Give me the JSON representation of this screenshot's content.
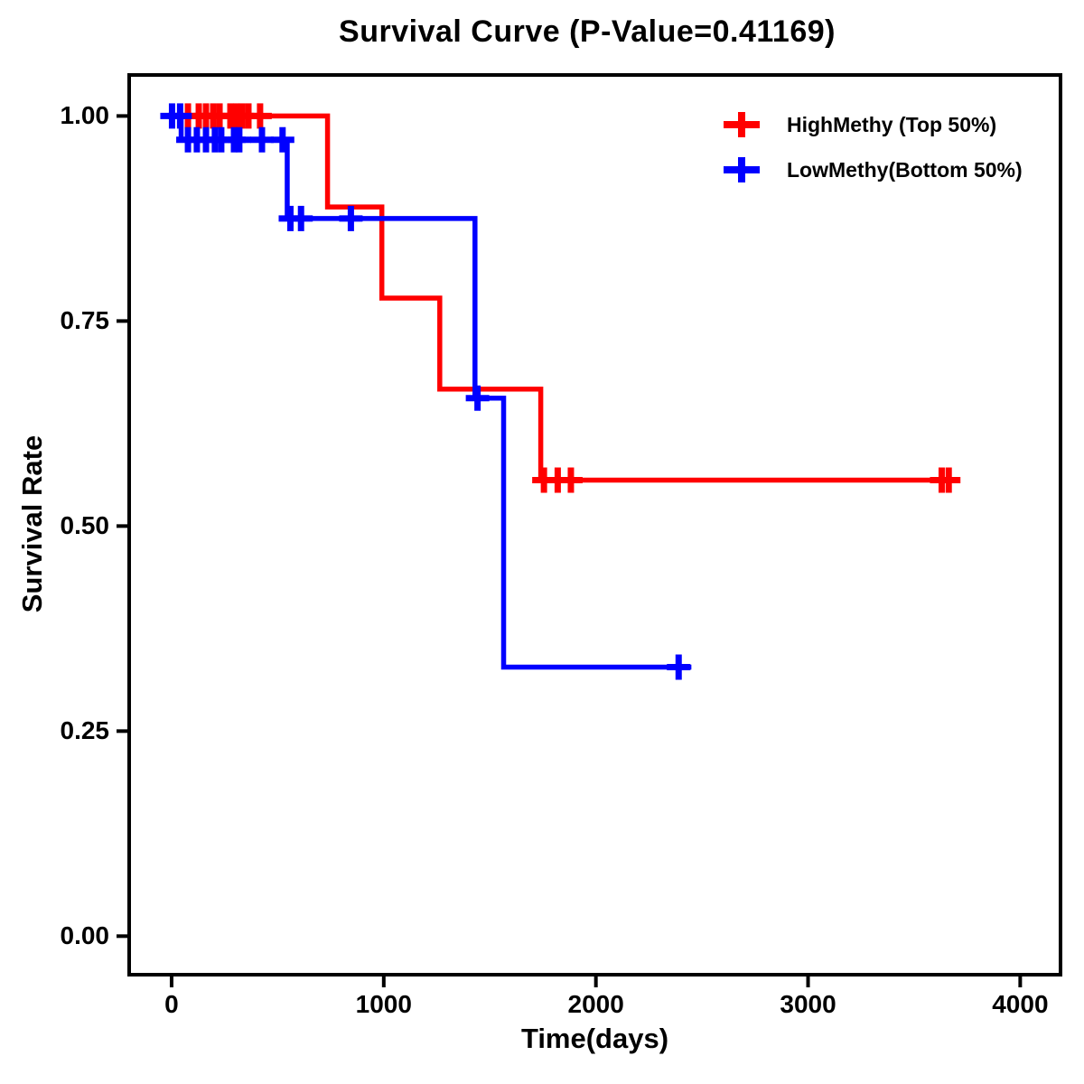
{
  "page": {
    "background": "#FFFFFF",
    "text_color": "#000000"
  },
  "chart_data": {
    "type": "line",
    "subtype": "kaplan-meier-step-curve",
    "title": "Survival Curve (P-Value=0.41169)",
    "p_value": "0.41169",
    "xlabel": "Time(days)",
    "ylabel": "Survival Rate",
    "x_ticks": [
      0,
      1000,
      2000,
      3000,
      4000
    ],
    "y_ticks": [
      0.0,
      0.25,
      0.5,
      0.75,
      1.0
    ],
    "xlim": [
      -200,
      4190
    ],
    "ylim": [
      -0.047,
      1.05
    ],
    "grid": "off",
    "axis_color": "#000000",
    "legend": {
      "position": "top-right"
    },
    "series": [
      {
        "id": "highmethy",
        "name": "HighMethy (Top 50%)",
        "color": "#FF0000",
        "steps": [
          {
            "t": 0,
            "s": 1.0
          },
          {
            "t": 735,
            "s": 0.889
          },
          {
            "t": 991,
            "s": 0.778
          },
          {
            "t": 1264,
            "s": 0.667
          },
          {
            "t": 1740,
            "s": 0.556
          }
        ],
        "t_end": 3700,
        "censors": [
          {
            "t": 77,
            "s": 1.0
          },
          {
            "t": 128,
            "s": 1.0
          },
          {
            "t": 162,
            "s": 1.0
          },
          {
            "t": 196,
            "s": 1.0
          },
          {
            "t": 226,
            "s": 1.0
          },
          {
            "t": 277,
            "s": 1.0
          },
          {
            "t": 305,
            "s": 1.0
          },
          {
            "t": 332,
            "s": 1.0
          },
          {
            "t": 362,
            "s": 1.0
          },
          {
            "t": 417,
            "s": 1.0
          },
          {
            "t": 1755,
            "s": 0.556
          },
          {
            "t": 1820,
            "s": 0.556
          },
          {
            "t": 1882,
            "s": 0.556
          },
          {
            "t": 3630,
            "s": 0.556
          },
          {
            "t": 3663,
            "s": 0.556
          }
        ]
      },
      {
        "id": "lowmethy",
        "name": "LowMethy(Bottom 50%)",
        "color": "#0000FF",
        "steps": [
          {
            "t": 0,
            "s": 1.0
          },
          {
            "t": 45,
            "s": 0.971
          },
          {
            "t": 545,
            "s": 0.875
          },
          {
            "t": 1430,
            "s": 0.656
          },
          {
            "t": 1565,
            "s": 0.328
          }
        ],
        "t_end": 2450,
        "censors": [
          {
            "t": 2,
            "s": 1.0
          },
          {
            "t": 40,
            "s": 1.0
          },
          {
            "t": 77,
            "s": 0.971
          },
          {
            "t": 119,
            "s": 0.971
          },
          {
            "t": 162,
            "s": 0.971
          },
          {
            "t": 204,
            "s": 0.971
          },
          {
            "t": 234,
            "s": 0.971
          },
          {
            "t": 294,
            "s": 0.971
          },
          {
            "t": 319,
            "s": 0.971
          },
          {
            "t": 426,
            "s": 0.971
          },
          {
            "t": 523,
            "s": 0.971
          },
          {
            "t": 560,
            "s": 0.875
          },
          {
            "t": 610,
            "s": 0.875
          },
          {
            "t": 845,
            "s": 0.875
          },
          {
            "t": 1442,
            "s": 0.656
          },
          {
            "t": 2390,
            "s": 0.328
          }
        ]
      }
    ]
  }
}
